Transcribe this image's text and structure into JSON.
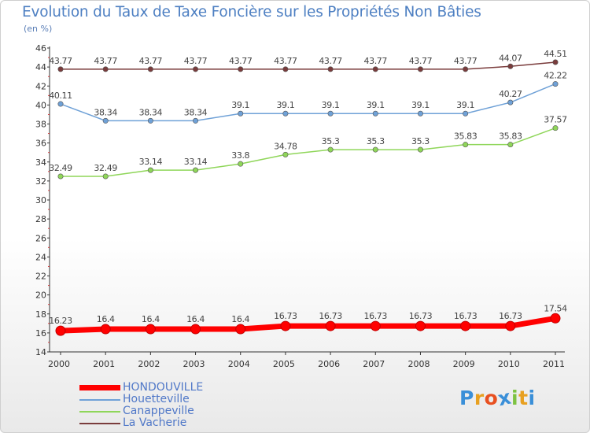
{
  "chart_data": {
    "type": "line",
    "title": "Evolution du Taux de Taxe Foncière sur les Propriétés Non Bâties",
    "unit_label": "(en %)",
    "xlabel": "",
    "ylabel": "",
    "categories": [
      "2000",
      "2001",
      "2002",
      "2003",
      "2004",
      "2005",
      "2006",
      "2007",
      "2008",
      "2009",
      "2010",
      "2011"
    ],
    "ylim": [
      14,
      46
    ],
    "yticks": [
      "14",
      "16",
      "18",
      "20",
      "22",
      "24",
      "26",
      "28",
      "30",
      "32",
      "34",
      "36",
      "38",
      "40",
      "42",
      "44",
      "46"
    ],
    "grid": false,
    "legend_position": "bottom-left",
    "series": [
      {
        "name": "HONDOUVILLE",
        "color": "#ff0000",
        "values": [
          16.23,
          16.4,
          16.4,
          16.4,
          16.4,
          16.73,
          16.73,
          16.73,
          16.73,
          16.73,
          16.73,
          17.54
        ],
        "labels": [
          "16.23",
          "16.4",
          "16.4",
          "16.4",
          "16.4",
          "16.73",
          "16.73",
          "16.73",
          "16.73",
          "16.73",
          "16.73",
          "17.54"
        ]
      },
      {
        "name": "Houetteville",
        "color": "#6fa1d7",
        "values": [
          40.11,
          38.34,
          38.34,
          38.34,
          39.1,
          39.1,
          39.1,
          39.1,
          39.1,
          39.1,
          40.27,
          42.22
        ],
        "labels": [
          "40.11",
          "38.34",
          "38.34",
          "38.34",
          "39.1",
          "39.1",
          "39.1",
          "39.1",
          "39.1",
          "39.1",
          "40.27",
          "42.22"
        ]
      },
      {
        "name": "Canappeville",
        "color": "#8fd659",
        "values": [
          32.49,
          32.49,
          33.14,
          33.14,
          33.8,
          34.78,
          35.3,
          35.3,
          35.3,
          35.83,
          35.83,
          37.57
        ],
        "labels": [
          "32.49",
          "32.49",
          "33.14",
          "33.14",
          "33.8",
          "34.78",
          "35.3",
          "35.3",
          "35.3",
          "35.83",
          "35.83",
          "37.57"
        ]
      },
      {
        "name": "La Vacherie",
        "color": "#7a3c3c",
        "values": [
          43.77,
          43.77,
          43.77,
          43.77,
          43.77,
          43.77,
          43.77,
          43.77,
          43.77,
          43.77,
          44.07,
          44.51
        ],
        "labels": [
          "43.77",
          "43.77",
          "43.77",
          "43.77",
          "43.77",
          "43.77",
          "43.77",
          "43.77",
          "43.77",
          "43.77",
          "44.07",
          "44.51"
        ]
      }
    ]
  },
  "logo": {
    "text": "Proxiti",
    "colors": [
      "#3a8fd8",
      "#e8a020",
      "#e85020",
      "#3a8fd8",
      "#7dc241",
      "#e8a020",
      "#3a8fd8"
    ]
  }
}
